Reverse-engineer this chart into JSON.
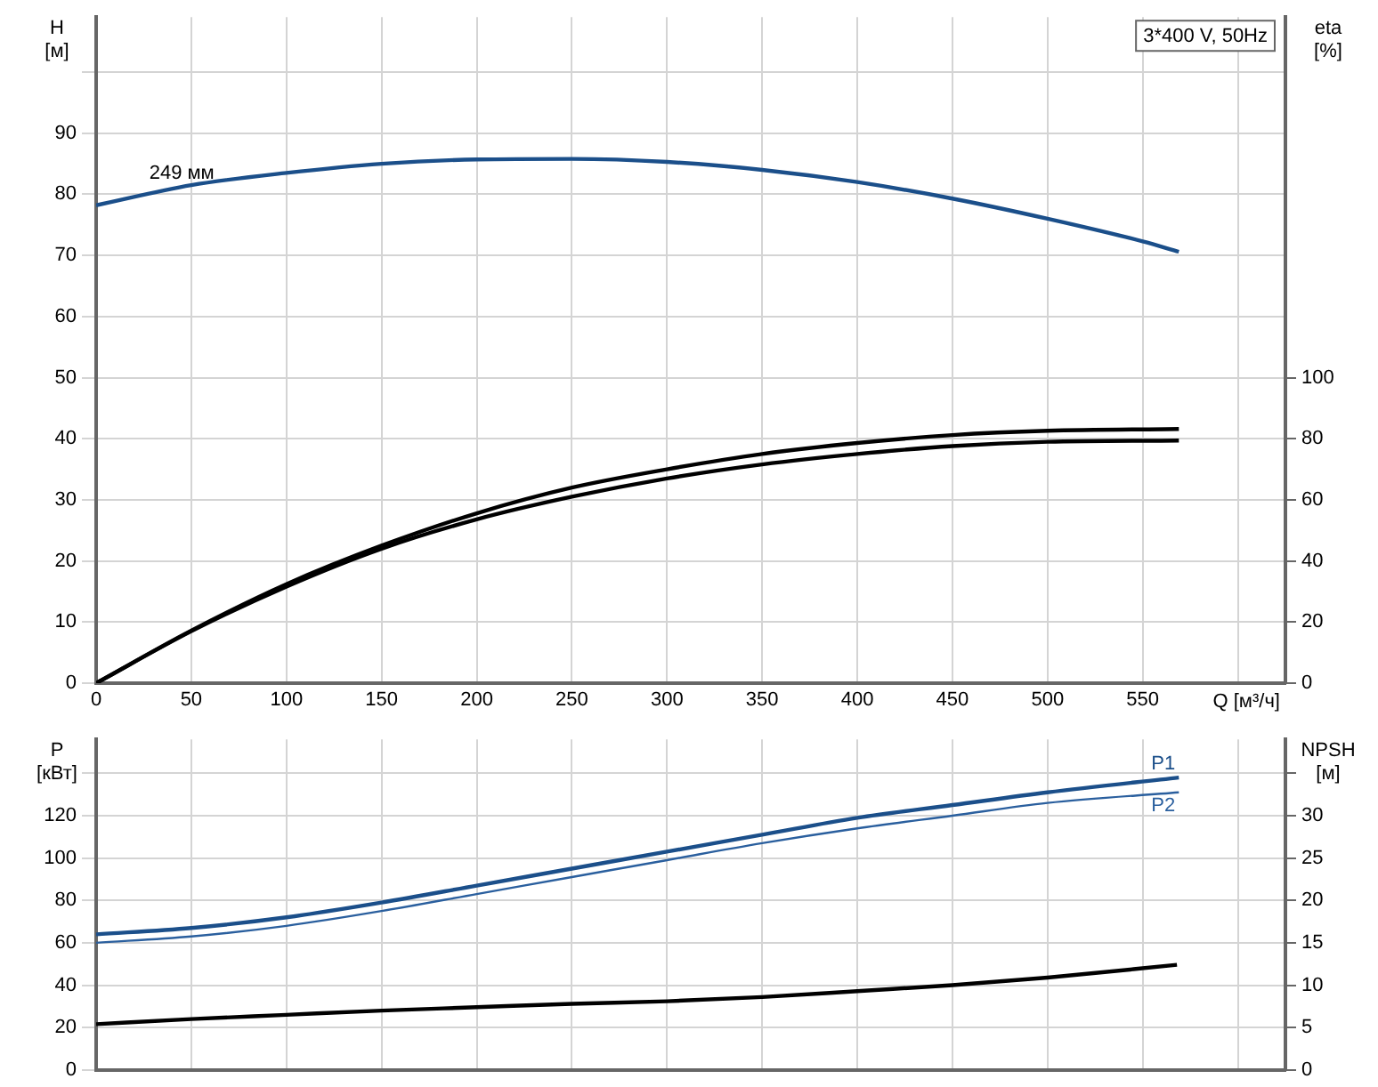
{
  "chart_data": [
    {
      "type": "line",
      "title": "3*400 V, 50Hz",
      "xlabel": "Q [м³/ч]",
      "ylabel": "H [м]",
      "y2label": "eta [%]",
      "xlim": [
        0,
        625
      ],
      "xticks": [
        0,
        50,
        100,
        150,
        200,
        250,
        300,
        350,
        400,
        450,
        500,
        550,
        {
          "value": 600,
          "label": null
        }
      ],
      "ylim": [
        0,
        109
      ],
      "yticks": [
        0,
        10,
        20,
        30,
        40,
        50,
        60,
        70,
        80,
        90,
        {
          "value": 100,
          "label": null
        }
      ],
      "y2lim": [
        0,
        218
      ],
      "y2ticks": [
        0,
        20,
        40,
        60,
        80,
        100
      ],
      "grid": true,
      "marker": "none",
      "line_style": "solid",
      "annotations": [
        {
          "text": "249 мм",
          "x": 45,
          "y": 81
        }
      ],
      "series": [
        {
          "color": "#1b4f8a",
          "x": [
            0,
            50,
            100,
            150,
            200,
            250,
            300,
            350,
            400,
            450,
            500,
            550,
            569
          ],
          "values": [
            78.2,
            81.5,
            83.5,
            85,
            85.7,
            85.8,
            85.3,
            84,
            82,
            79.3,
            76,
            72.3,
            70.6
          ]
        },
        {
          "color": "#000000",
          "axis": "y2",
          "x": [
            0,
            50,
            100,
            150,
            200,
            250,
            300,
            350,
            400,
            450,
            500,
            569
          ],
          "values": [
            0,
            17.2,
            32.4,
            45,
            55.6,
            64,
            70,
            75,
            78.6,
            81.2,
            82.6,
            83.2
          ]
        },
        {
          "color": "#000000",
          "axis": "y2",
          "x": [
            0,
            50,
            100,
            150,
            200,
            250,
            300,
            350,
            400,
            450,
            500,
            569
          ],
          "values": [
            0,
            17,
            31.6,
            44,
            53.6,
            61,
            67,
            71.6,
            75,
            77.6,
            79,
            79.4
          ]
        }
      ]
    },
    {
      "type": "line",
      "ylabel": "P [кВт]",
      "y2label": "NPSH [м]",
      "tick_labels": "y",
      "xlim": [
        0,
        625
      ],
      "xticks": [
        0,
        50,
        100,
        150,
        200,
        250,
        300,
        350,
        400,
        450,
        500,
        550,
        600
      ],
      "ylim": [
        0,
        156
      ],
      "yticks": [
        0,
        20,
        40,
        60,
        80,
        100,
        120,
        {
          "value": 140,
          "label": null
        }
      ],
      "y2lim": [
        0,
        39
      ],
      "y2ticks": [
        0,
        5,
        10,
        15,
        20,
        25,
        30,
        {
          "value": 35,
          "label": null
        }
      ],
      "grid": true,
      "marker": "none",
      "line_style": "solid",
      "series": [
        {
          "name": "P1",
          "color": "#1b4f8a",
          "x": [
            0,
            50,
            100,
            150,
            200,
            250,
            300,
            350,
            400,
            450,
            500,
            569
          ],
          "values": [
            64,
            67,
            72,
            79,
            87,
            95,
            103,
            111,
            119,
            125,
            131,
            138
          ]
        },
        {
          "name": "P2",
          "color": "#2a5f9e",
          "x": [
            0,
            50,
            100,
            150,
            200,
            250,
            300,
            350,
            400,
            450,
            500,
            569
          ],
          "values": [
            60,
            63,
            68,
            75,
            83,
            91,
            99,
            107,
            114,
            120,
            126,
            131
          ]
        },
        {
          "color": "#000000",
          "axis": "y2",
          "x": [
            0,
            50,
            100,
            150,
            200,
            250,
            300,
            350,
            400,
            450,
            500,
            568
          ],
          "values": [
            5.4,
            6,
            6.5,
            7,
            7.4,
            7.8,
            8.1,
            8.6,
            9.3,
            10,
            10.9,
            12.4
          ]
        }
      ]
    }
  ]
}
